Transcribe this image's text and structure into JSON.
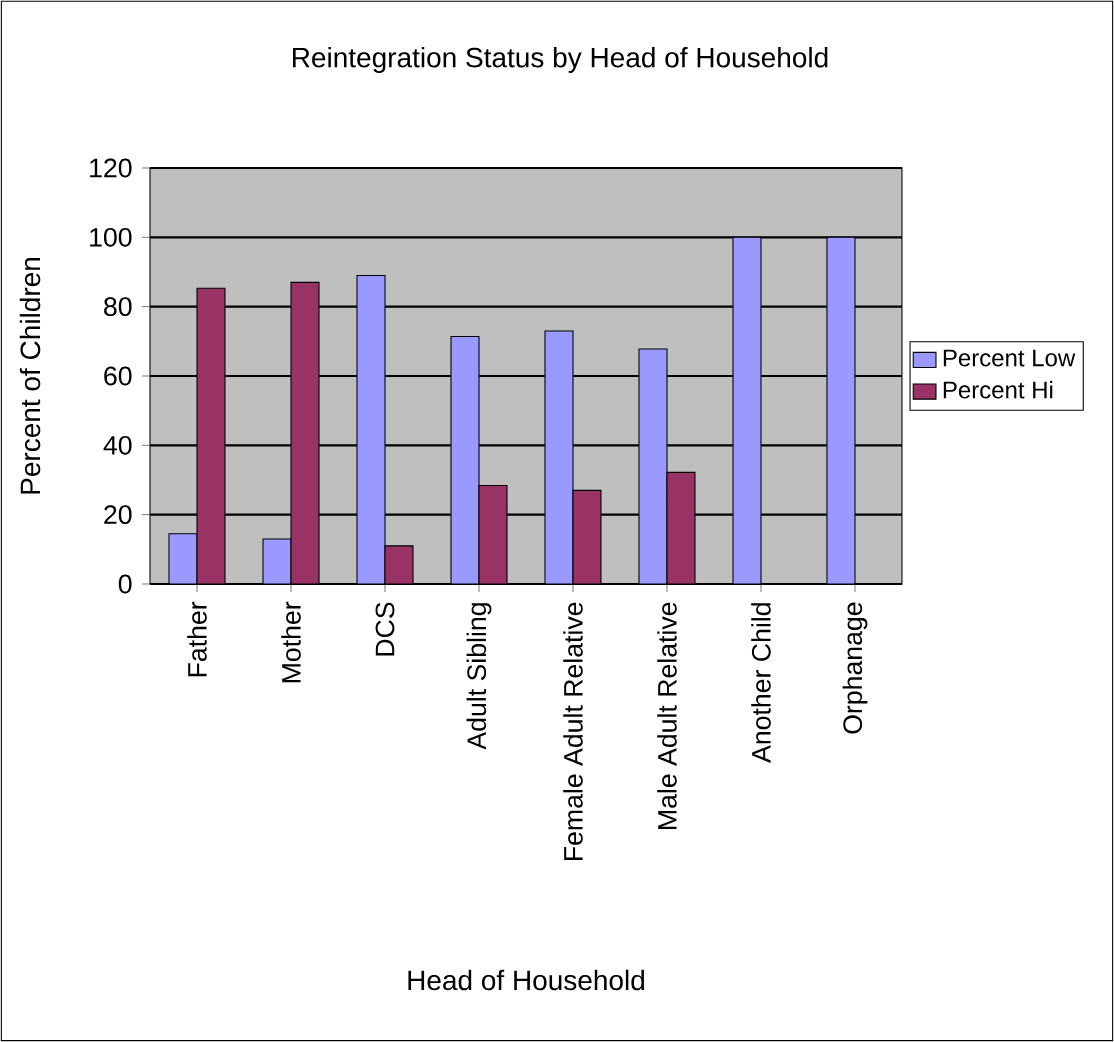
{
  "chart_data": {
    "type": "bar",
    "title": "Reintegration Status by Head of Household",
    "xlabel": "Head of Household",
    "ylabel": "Percent of Children",
    "categories": [
      "Father",
      "Mother",
      "DCS",
      "Adult Sibling",
      "Female Adult Relative",
      "Male Adult Relative",
      "Another Child",
      "Orphanage"
    ],
    "series": [
      {
        "name": "Percent Low",
        "color": "#9999ff",
        "values": [
          14.5,
          13,
          89,
          71.4,
          73,
          67.8,
          100,
          100
        ]
      },
      {
        "name": "Percent Hi",
        "color": "#993366",
        "values": [
          85.3,
          87,
          11,
          28.4,
          27,
          32.2,
          0,
          0
        ]
      }
    ],
    "ylim": [
      0,
      120
    ],
    "yticks": [
      0,
      20,
      40,
      60,
      80,
      100,
      120
    ],
    "grid": "y",
    "legend": "right"
  }
}
